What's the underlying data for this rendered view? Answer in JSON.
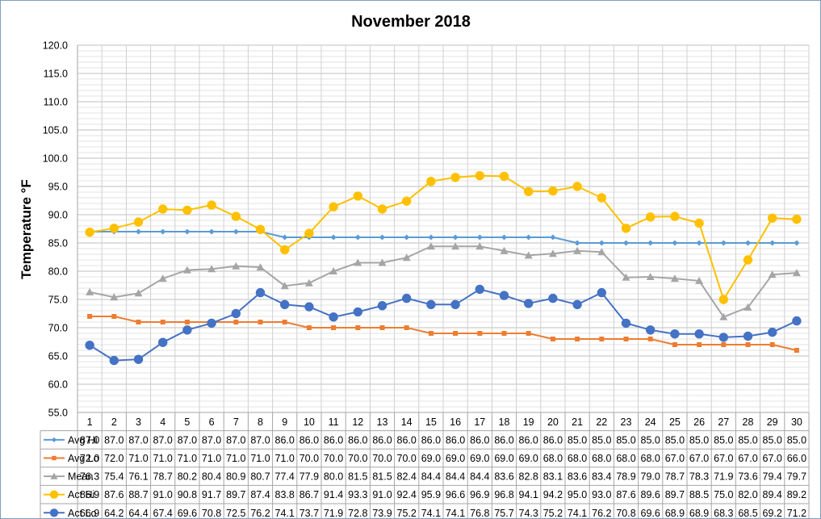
{
  "chart_data": {
    "type": "line",
    "title": "November 2018",
    "xlabel": "",
    "ylabel": "Temperature °F",
    "ylim": [
      55,
      120
    ],
    "ytick_step": 5,
    "minor_grid_step": 1,
    "grid": true,
    "legend": "data-table-below",
    "categories": [
      "1",
      "2",
      "3",
      "4",
      "5",
      "6",
      "7",
      "8",
      "9",
      "10",
      "11",
      "12",
      "13",
      "14",
      "15",
      "16",
      "17",
      "18",
      "19",
      "20",
      "21",
      "22",
      "23",
      "24",
      "25",
      "26",
      "27",
      "28",
      "29",
      "30"
    ],
    "series": [
      {
        "name": "Avg Hi",
        "color": "#5b9bd5",
        "marker": "diamond",
        "values": [
          87.0,
          87.0,
          87.0,
          87.0,
          87.0,
          87.0,
          87.0,
          87.0,
          86.0,
          86.0,
          86.0,
          86.0,
          86.0,
          86.0,
          86.0,
          86.0,
          86.0,
          86.0,
          86.0,
          86.0,
          85.0,
          85.0,
          85.0,
          85.0,
          85.0,
          85.0,
          85.0,
          85.0,
          85.0,
          85.0
        ]
      },
      {
        "name": "Avg Lo",
        "color": "#ed7d31",
        "marker": "square",
        "values": [
          72.0,
          72.0,
          71.0,
          71.0,
          71.0,
          71.0,
          71.0,
          71.0,
          71.0,
          70.0,
          70.0,
          70.0,
          70.0,
          70.0,
          69.0,
          69.0,
          69.0,
          69.0,
          69.0,
          68.0,
          68.0,
          68.0,
          68.0,
          68.0,
          67.0,
          67.0,
          67.0,
          67.0,
          67.0,
          66.0
        ]
      },
      {
        "name": "Mean",
        "color": "#a5a5a5",
        "marker": "triangle",
        "values": [
          76.3,
          75.4,
          76.1,
          78.7,
          80.2,
          80.4,
          80.9,
          80.7,
          77.4,
          77.9,
          80.0,
          81.5,
          81.5,
          82.4,
          84.4,
          84.4,
          84.4,
          83.6,
          82.8,
          83.1,
          83.6,
          83.4,
          78.9,
          79.0,
          78.7,
          78.3,
          71.9,
          73.6,
          79.4,
          79.7
        ]
      },
      {
        "name": "Act Hi",
        "color": "#ffc000",
        "marker": "circle",
        "values": [
          86.9,
          87.6,
          88.7,
          91.0,
          90.8,
          91.7,
          89.7,
          87.4,
          83.8,
          86.7,
          91.4,
          93.3,
          91.0,
          92.4,
          95.9,
          96.6,
          96.9,
          96.8,
          94.1,
          94.2,
          95.0,
          93.0,
          87.6,
          89.6,
          89.7,
          88.5,
          75.0,
          82.0,
          89.4,
          89.2
        ]
      },
      {
        "name": "Act Lo",
        "color": "#4472c4",
        "marker": "circle",
        "values": [
          66.9,
          64.2,
          64.4,
          67.4,
          69.6,
          70.8,
          72.5,
          76.2,
          74.1,
          73.7,
          71.9,
          72.8,
          73.9,
          75.2,
          74.1,
          74.1,
          76.8,
          75.7,
          74.3,
          75.2,
          74.1,
          76.2,
          70.8,
          69.6,
          68.9,
          68.9,
          68.3,
          68.5,
          69.2,
          71.2
        ]
      }
    ]
  }
}
